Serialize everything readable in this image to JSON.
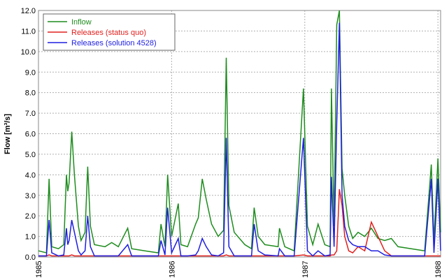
{
  "chart_data": {
    "type": "line",
    "ylabel": "Flow [m³/s]",
    "x": [
      1985.0,
      1985.06,
      1985.08,
      1985.1,
      1985.15,
      1985.19,
      1985.21,
      1985.22,
      1985.23,
      1985.25,
      1985.27,
      1985.3,
      1985.32,
      1985.35,
      1985.37,
      1985.39,
      1985.42,
      1985.5,
      1985.55,
      1985.6,
      1985.67,
      1985.7,
      1985.8,
      1985.9,
      1985.92,
      1985.95,
      1985.97,
      1986.0,
      1986.05,
      1986.07,
      1986.12,
      1986.18,
      1986.2,
      1986.23,
      1986.26,
      1986.3,
      1986.35,
      1986.39,
      1986.41,
      1986.43,
      1986.47,
      1986.55,
      1986.6,
      1986.62,
      1986.65,
      1986.7,
      1986.8,
      1986.81,
      1986.85,
      1986.92,
      1986.99,
      1987.02,
      1987.06,
      1987.1,
      1987.15,
      1987.19,
      1987.2,
      1987.22,
      1987.24,
      1987.26,
      1987.28,
      1987.3,
      1987.33,
      1987.36,
      1987.4,
      1987.45,
      1987.5,
      1987.55,
      1987.6,
      1987.65,
      1987.7,
      1987.8,
      1987.9,
      1987.95,
      1987.97,
      1988.0,
      1988.02
    ],
    "series": [
      {
        "name": "Inflow",
        "color": "#1e8c1e",
        "values": [
          0.3,
          0.2,
          3.8,
          0.5,
          0.4,
          0.6,
          4.0,
          3.2,
          3.6,
          6.1,
          4.0,
          1.5,
          0.8,
          1.2,
          4.4,
          1.5,
          0.6,
          0.5,
          0.7,
          0.5,
          1.4,
          0.4,
          0.3,
          0.2,
          1.6,
          0.5,
          4.0,
          1.0,
          2.6,
          0.6,
          0.5,
          1.6,
          1.9,
          3.8,
          2.8,
          1.6,
          1.0,
          1.3,
          9.7,
          2.5,
          1.2,
          0.6,
          0.4,
          2.4,
          1.0,
          0.6,
          0.5,
          1.4,
          0.5,
          0.3,
          8.2,
          1.5,
          0.6,
          1.6,
          0.6,
          0.5,
          8.2,
          1.5,
          11.3,
          12.0,
          4.3,
          3.0,
          1.5,
          0.9,
          1.2,
          1.0,
          1.4,
          0.9,
          0.8,
          0.9,
          0.5,
          0.4,
          0.3,
          4.5,
          0.8,
          4.8,
          1.2
        ]
      },
      {
        "name": "Releases (status quo)",
        "color": "#e0201e",
        "values": [
          0.05,
          0.05,
          0.1,
          0.05,
          0.05,
          0.05,
          0.05,
          0.05,
          0.05,
          0.1,
          0.05,
          0.05,
          0.05,
          0.05,
          0.05,
          0.05,
          0.05,
          0.05,
          0.05,
          0.05,
          0.05,
          0.05,
          0.05,
          0.05,
          0.05,
          0.05,
          0.05,
          0.05,
          0.05,
          0.05,
          0.05,
          0.05,
          0.05,
          0.05,
          0.05,
          0.05,
          0.05,
          0.05,
          0.1,
          0.05,
          0.05,
          0.05,
          0.05,
          0.05,
          0.05,
          0.05,
          0.05,
          0.05,
          0.05,
          0.05,
          0.1,
          0.05,
          0.05,
          0.05,
          0.05,
          0.05,
          0.1,
          0.1,
          0.3,
          3.3,
          2.5,
          1.0,
          0.3,
          0.2,
          0.5,
          0.3,
          1.7,
          1.0,
          0.3,
          0.05,
          0.05,
          0.05,
          0.05,
          0.05,
          0.05,
          0.05,
          0.05
        ]
      },
      {
        "name": "Releases (solution 4528)",
        "color": "#1e1ee0",
        "values": [
          0.05,
          0.05,
          1.8,
          0.2,
          0.05,
          0.1,
          1.4,
          0.6,
          0.8,
          1.8,
          1.2,
          0.3,
          0.1,
          0.3,
          2.0,
          0.5,
          0.05,
          0.05,
          0.05,
          0.05,
          0.6,
          0.05,
          0.05,
          0.05,
          0.8,
          0.1,
          2.4,
          0.2,
          0.9,
          0.05,
          0.05,
          0.1,
          0.3,
          0.9,
          0.5,
          0.1,
          0.05,
          0.2,
          5.8,
          0.5,
          0.05,
          0.05,
          0.05,
          1.6,
          0.3,
          0.1,
          0.05,
          0.4,
          0.05,
          0.05,
          5.8,
          0.3,
          0.05,
          0.3,
          0.05,
          0.1,
          3.9,
          0.5,
          6.5,
          11.4,
          3.0,
          1.5,
          0.8,
          0.6,
          0.5,
          0.5,
          0.3,
          0.3,
          0.1,
          0.05,
          0.05,
          0.05,
          0.05,
          3.8,
          0.2,
          3.8,
          0.3
        ]
      }
    ],
    "xlim": [
      1985,
      1988.02
    ],
    "xticks": [
      1985,
      1986,
      1987,
      1988
    ],
    "ylim": [
      0,
      12
    ],
    "yticks": [
      {
        "value": 0,
        "label": "0.0"
      },
      {
        "value": 1,
        "label": "1.0"
      },
      {
        "value": 2,
        "label": "2.0"
      },
      {
        "value": 3,
        "label": "3.0"
      },
      {
        "value": 4,
        "label": "4.0"
      },
      {
        "value": 5,
        "label": "5.0"
      },
      {
        "value": 6,
        "label": "6.0"
      },
      {
        "value": 7,
        "label": "7.0"
      },
      {
        "value": 8,
        "label": "8.0"
      },
      {
        "value": 9,
        "label": "9.0"
      },
      {
        "value": 10,
        "label": "10.0"
      },
      {
        "value": 11,
        "label": "11.0"
      },
      {
        "value": 12,
        "label": "12.0"
      }
    ],
    "grid": true,
    "legend": "upper left"
  }
}
